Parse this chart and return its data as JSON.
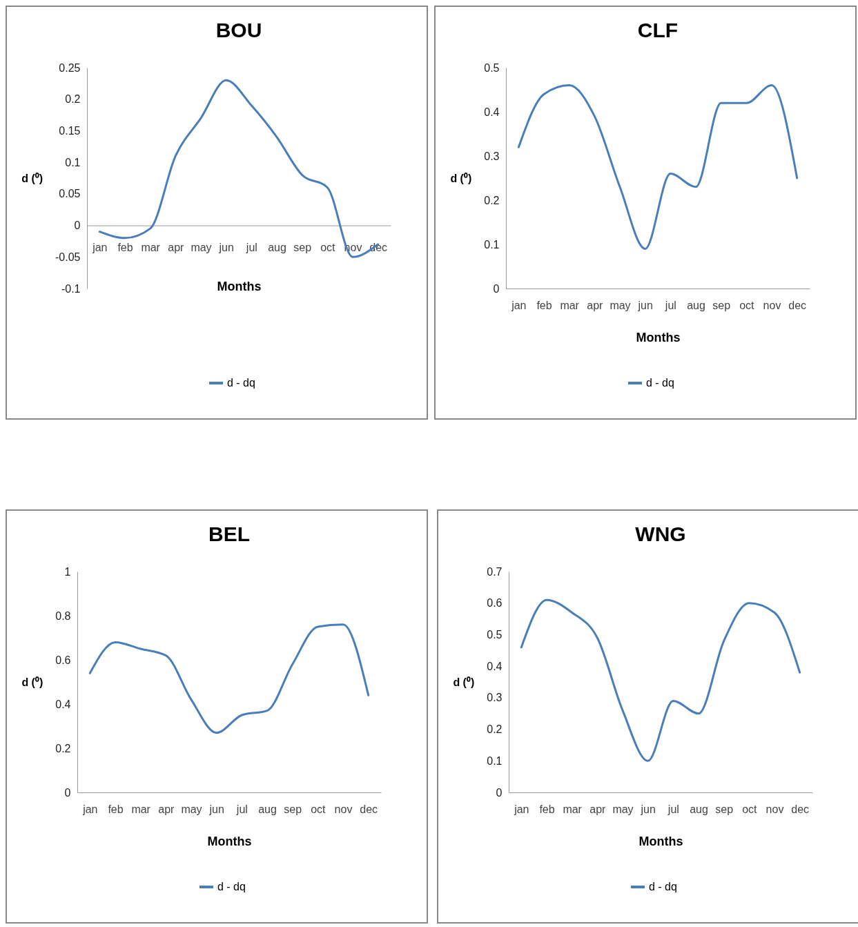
{
  "chart_data": [
    {
      "type": "line",
      "title": "BOU",
      "xlabel": "Months",
      "ylabel": "d (⁰)",
      "categories": [
        "jan",
        "feb",
        "mar",
        "apr",
        "may",
        "jun",
        "jul",
        "aug",
        "sep",
        "oct",
        "nov",
        "dec"
      ],
      "ylim": [
        -0.1,
        0.25
      ],
      "yticks": [
        -0.1,
        -0.05,
        0,
        0.05,
        0.1,
        0.15,
        0.2,
        0.25
      ],
      "legend": "bottom",
      "series": [
        {
          "name": "d - dq",
          "color": "#4a7ebb",
          "values": [
            -0.01,
            -0.02,
            -0.005,
            0.11,
            0.17,
            0.23,
            0.19,
            0.14,
            0.08,
            0.06,
            -0.05,
            -0.03
          ]
        }
      ]
    },
    {
      "type": "line",
      "title": "CLF",
      "xlabel": "Months",
      "ylabel": "d (⁰)",
      "categories": [
        "jan",
        "feb",
        "mar",
        "apr",
        "may",
        "jun",
        "jul",
        "aug",
        "sep",
        "oct",
        "nov",
        "dec"
      ],
      "ylim": [
        0,
        0.5
      ],
      "yticks": [
        0,
        0.1,
        0.2,
        0.3,
        0.4,
        0.5
      ],
      "legend": "bottom",
      "series": [
        {
          "name": "d - dq",
          "color": "#4a7ebb",
          "values": [
            0.32,
            0.44,
            0.46,
            0.39,
            0.23,
            0.09,
            0.26,
            0.23,
            0.42,
            0.42,
            0.46,
            0.25
          ]
        }
      ]
    },
    {
      "type": "line",
      "title": "BEL",
      "xlabel": "Months",
      "ylabel": "d (⁰)",
      "categories": [
        "jan",
        "feb",
        "mar",
        "apr",
        "may",
        "jun",
        "jul",
        "aug",
        "sep",
        "oct",
        "nov",
        "dec"
      ],
      "ylim": [
        0,
        1
      ],
      "yticks": [
        0,
        0.2,
        0.4,
        0.6,
        0.8,
        1
      ],
      "legend": "bottom",
      "series": [
        {
          "name": "d - dq",
          "color": "#4a7ebb",
          "values": [
            0.54,
            0.68,
            0.65,
            0.62,
            0.42,
            0.27,
            0.35,
            0.37,
            0.58,
            0.75,
            0.76,
            0.44
          ]
        }
      ]
    },
    {
      "type": "line",
      "title": "WNG",
      "xlabel": "Months",
      "ylabel": "d (⁰)",
      "categories": [
        "jan",
        "feb",
        "mar",
        "apr",
        "may",
        "jun",
        "jul",
        "aug",
        "sep",
        "oct",
        "nov",
        "dec"
      ],
      "ylim": [
        0,
        0.7
      ],
      "yticks": [
        0,
        0.1,
        0.2,
        0.3,
        0.4,
        0.5,
        0.6,
        0.7
      ],
      "legend": "bottom",
      "series": [
        {
          "name": "d - dq",
          "color": "#4a7ebb",
          "values": [
            0.46,
            0.61,
            0.57,
            0.49,
            0.26,
            0.1,
            0.29,
            0.25,
            0.48,
            0.6,
            0.57,
            0.38
          ]
        }
      ]
    }
  ]
}
